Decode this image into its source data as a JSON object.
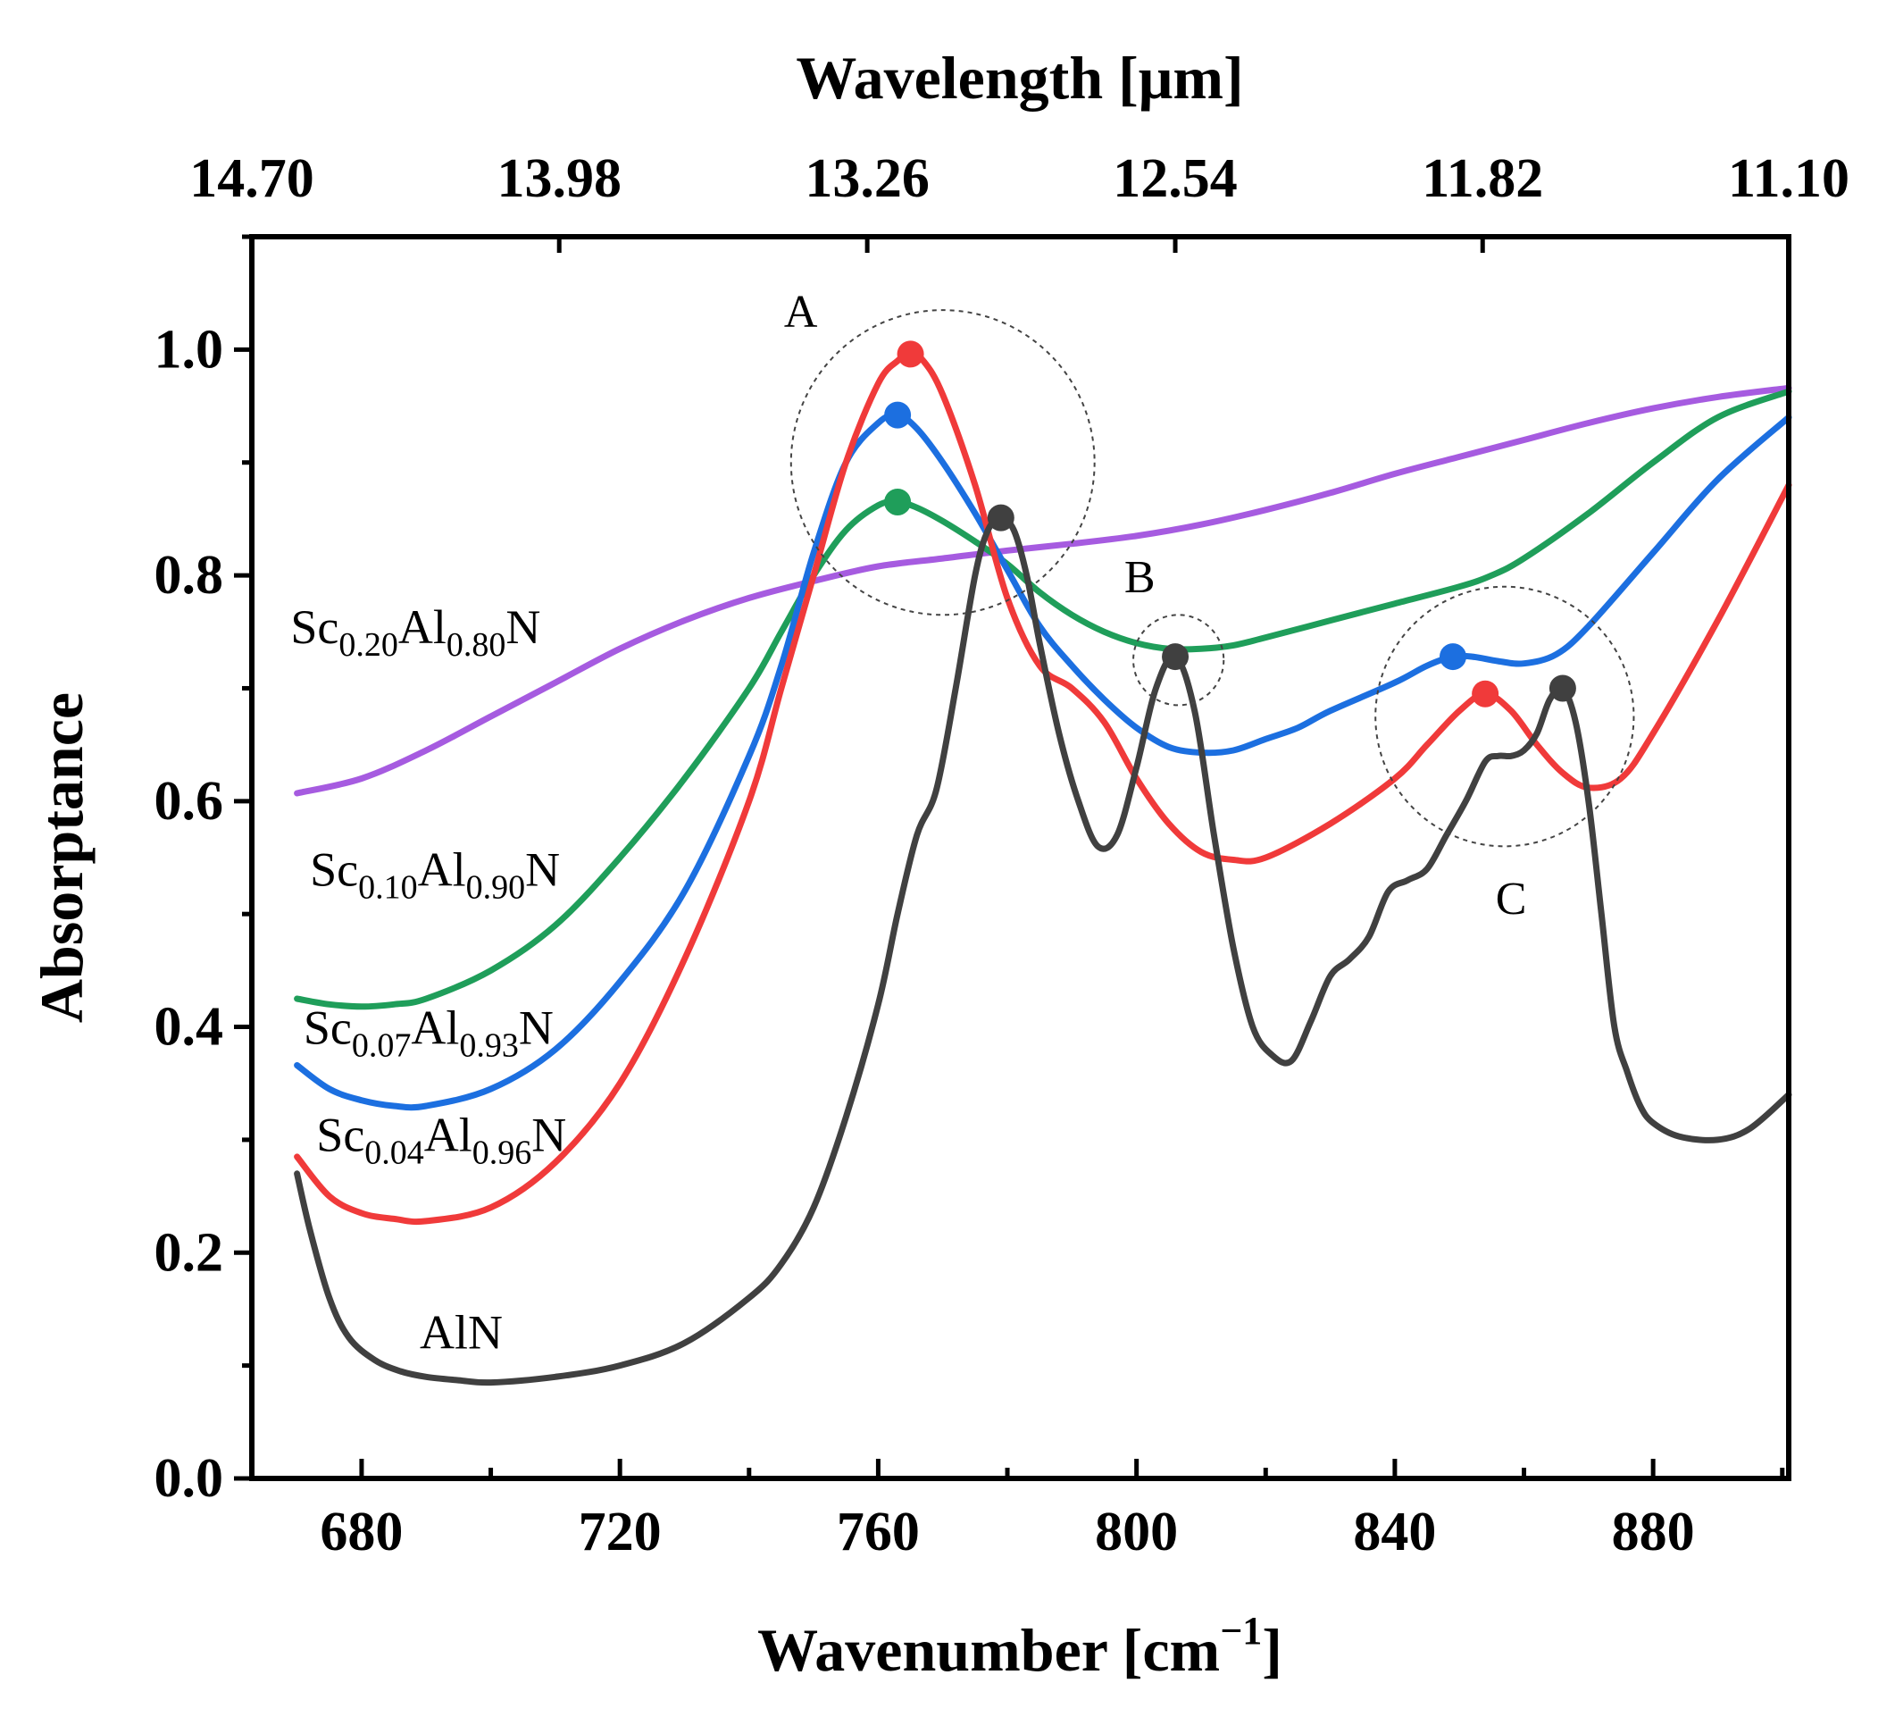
{
  "chart_data": {
    "type": "line",
    "xlabel": "Wavenumber [cm",
    "xlabel_sup": "−1",
    "xlabel_close": "]",
    "ylabel": "Absorptance",
    "top_axis_label": "Wavelength [μm]",
    "xlim": [
      663,
      901
    ],
    "ylim": [
      0.0,
      1.1
    ],
    "x_ticks": [
      680,
      720,
      760,
      800,
      840,
      880
    ],
    "y_ticks": [
      0.0,
      0.2,
      0.4,
      0.6,
      0.8,
      1.0
    ],
    "y_tick_labels": [
      "0.0",
      "0.2",
      "0.4",
      "0.6",
      "0.8",
      "1.0"
    ],
    "top_ticks": [
      {
        "label": "14.70",
        "pos": 663
      },
      {
        "label": "13.98",
        "pos": 710.6
      },
      {
        "label": "13.26",
        "pos": 758.3
      },
      {
        "label": "12.54",
        "pos": 806
      },
      {
        "label": "11.82",
        "pos": 853.6
      },
      {
        "label": "11.10",
        "pos": 901
      }
    ],
    "series": [
      {
        "name": "Sc0.20Al0.80N",
        "label": {
          "base1": "Sc",
          "sub1": "0.20",
          "base2": "Al",
          "sub2": "0.80",
          "base3": "N"
        },
        "color": "#A65BE0",
        "x": [
          670,
          680,
          690,
          700,
          710,
          720,
          730,
          740,
          750,
          760,
          770,
          780,
          790,
          800,
          810,
          820,
          830,
          840,
          850,
          860,
          870,
          880,
          890,
          901
        ],
        "y": [
          0.607,
          0.62,
          0.645,
          0.675,
          0.705,
          0.735,
          0.76,
          0.78,
          0.795,
          0.808,
          0.815,
          0.822,
          0.828,
          0.835,
          0.845,
          0.858,
          0.873,
          0.89,
          0.905,
          0.92,
          0.935,
          0.948,
          0.958,
          0.966
        ],
        "markers": []
      },
      {
        "name": "Sc0.10Al0.90N",
        "label": {
          "base1": "Sc",
          "sub1": "0.10",
          "base2": "Al",
          "sub2": "0.90",
          "base3": "N"
        },
        "color": "#1F9E5A",
        "x": [
          670,
          675,
          680,
          685,
          690,
          700,
          710,
          720,
          730,
          740,
          745,
          750,
          755,
          760,
          763,
          766,
          770,
          775,
          780,
          785,
          790,
          795,
          800,
          805,
          810,
          815,
          820,
          830,
          840,
          850,
          855,
          860,
          870,
          880,
          890,
          901
        ],
        "y": [
          0.425,
          0.42,
          0.418,
          0.42,
          0.425,
          0.45,
          0.49,
          0.55,
          0.62,
          0.7,
          0.75,
          0.8,
          0.84,
          0.862,
          0.865,
          0.86,
          0.848,
          0.83,
          0.81,
          0.785,
          0.765,
          0.75,
          0.74,
          0.735,
          0.735,
          0.738,
          0.745,
          0.76,
          0.775,
          0.79,
          0.8,
          0.815,
          0.855,
          0.9,
          0.94,
          0.963
        ],
        "markers": [
          {
            "x": 763,
            "y": 0.865
          }
        ]
      },
      {
        "name": "Sc0.07Al0.93N",
        "label": {
          "base1": "Sc",
          "sub1": "0.07",
          "base2": "Al",
          "sub2": "0.93",
          "base3": "N"
        },
        "color": "#1C6FE0",
        "x": [
          670,
          675,
          680,
          685,
          690,
          700,
          710,
          720,
          730,
          740,
          745,
          750,
          755,
          760,
          763,
          766,
          770,
          775,
          780,
          785,
          790,
          795,
          800,
          805,
          810,
          815,
          820,
          825,
          830,
          840,
          845,
          849,
          852,
          856,
          860,
          865,
          870,
          880,
          890,
          901
        ],
        "y": [
          0.366,
          0.345,
          0.335,
          0.33,
          0.33,
          0.345,
          0.38,
          0.44,
          0.52,
          0.64,
          0.72,
          0.82,
          0.9,
          0.935,
          0.942,
          0.93,
          0.9,
          0.855,
          0.805,
          0.755,
          0.72,
          0.69,
          0.665,
          0.648,
          0.643,
          0.645,
          0.655,
          0.665,
          0.68,
          0.705,
          0.72,
          0.728,
          0.728,
          0.724,
          0.722,
          0.73,
          0.755,
          0.82,
          0.885,
          0.94
        ],
        "markers": [
          {
            "x": 763,
            "y": 0.942
          },
          {
            "x": 849,
            "y": 0.728
          }
        ]
      },
      {
        "name": "Sc0.04Al0.96N",
        "label": {
          "base1": "Sc",
          "sub1": "0.04",
          "base2": "Al",
          "sub2": "0.96",
          "base3": "N"
        },
        "color": "#F03A3A",
        "x": [
          670,
          675,
          680,
          685,
          690,
          700,
          710,
          720,
          730,
          740,
          745,
          750,
          755,
          760,
          763,
          765,
          767,
          770,
          775,
          780,
          785,
          790,
          795,
          800,
          805,
          810,
          815,
          820,
          830,
          840,
          845,
          850,
          854,
          858,
          862,
          866,
          870,
          875,
          880,
          890,
          901
        ],
        "y": [
          0.285,
          0.25,
          0.235,
          0.23,
          0.228,
          0.24,
          0.28,
          0.35,
          0.46,
          0.6,
          0.7,
          0.8,
          0.9,
          0.97,
          0.99,
          0.996,
          0.99,
          0.96,
          0.88,
          0.78,
          0.72,
          0.7,
          0.67,
          0.62,
          0.58,
          0.555,
          0.548,
          0.55,
          0.58,
          0.62,
          0.65,
          0.68,
          0.695,
          0.68,
          0.65,
          0.625,
          0.612,
          0.62,
          0.66,
          0.76,
          0.88
        ],
        "markers": [
          {
            "x": 765,
            "y": 0.996
          },
          {
            "x": 854,
            "y": 0.695
          }
        ]
      },
      {
        "name": "AlN",
        "label": {
          "text": "AlN"
        },
        "color": "#404040",
        "x": [
          670,
          672,
          675,
          678,
          682,
          686,
          690,
          695,
          700,
          710,
          720,
          730,
          740,
          745,
          750,
          755,
          760,
          763,
          766,
          769,
          772,
          775,
          777,
          779,
          781,
          783,
          785,
          788,
          791,
          794,
          797,
          800,
          803,
          806,
          809,
          812,
          815,
          818,
          821,
          824,
          827,
          830,
          833,
          836,
          839,
          842,
          845,
          848,
          851,
          854,
          856,
          858,
          860,
          862,
          864,
          866,
          868,
          870,
          872,
          874,
          876,
          878,
          880,
          884,
          890,
          895,
          901
        ],
        "y": [
          0.27,
          0.22,
          0.16,
          0.125,
          0.105,
          0.095,
          0.09,
          0.087,
          0.085,
          0.09,
          0.1,
          0.12,
          0.16,
          0.19,
          0.24,
          0.32,
          0.42,
          0.5,
          0.57,
          0.61,
          0.7,
          0.8,
          0.84,
          0.851,
          0.84,
          0.8,
          0.74,
          0.66,
          0.6,
          0.56,
          0.57,
          0.63,
          0.7,
          0.728,
          0.68,
          0.57,
          0.47,
          0.4,
          0.375,
          0.37,
          0.405,
          0.445,
          0.46,
          0.48,
          0.52,
          0.53,
          0.54,
          0.57,
          0.6,
          0.635,
          0.64,
          0.64,
          0.645,
          0.66,
          0.69,
          0.7,
          0.67,
          0.6,
          0.5,
          0.4,
          0.36,
          0.33,
          0.315,
          0.303,
          0.3,
          0.31,
          0.34
        ],
        "markers": [
          {
            "x": 779,
            "y": 0.851
          },
          {
            "x": 806,
            "y": 0.728
          },
          {
            "x": 866,
            "y": 0.7
          }
        ]
      }
    ],
    "annotations": [
      {
        "label": "A",
        "cx": 770,
        "cy": 0.9,
        "rx": 23.5,
        "ry": 0.135,
        "label_x": 748,
        "label_y": 1.02
      },
      {
        "label": "B",
        "cx": 806.5,
        "cy": 0.725,
        "rx": 7,
        "ry": 0.04,
        "label_x": 800.5,
        "label_y": 0.785
      },
      {
        "label": "C",
        "cx": 857,
        "cy": 0.675,
        "rx": 20,
        "ry": 0.115,
        "label_x": 858,
        "label_y": 0.5
      }
    ],
    "series_label_positions": [
      {
        "series": "Sc0.20Al0.80N",
        "x": 669,
        "y": 0.74
      },
      {
        "series": "Sc0.10Al0.90N",
        "x": 672,
        "y": 0.525
      },
      {
        "series": "Sc0.07Al0.93N",
        "x": 671,
        "y": 0.385
      },
      {
        "series": "Sc0.04Al0.96N",
        "x": 673,
        "y": 0.29
      },
      {
        "series": "AlN",
        "x": 689,
        "y": 0.115
      }
    ]
  }
}
